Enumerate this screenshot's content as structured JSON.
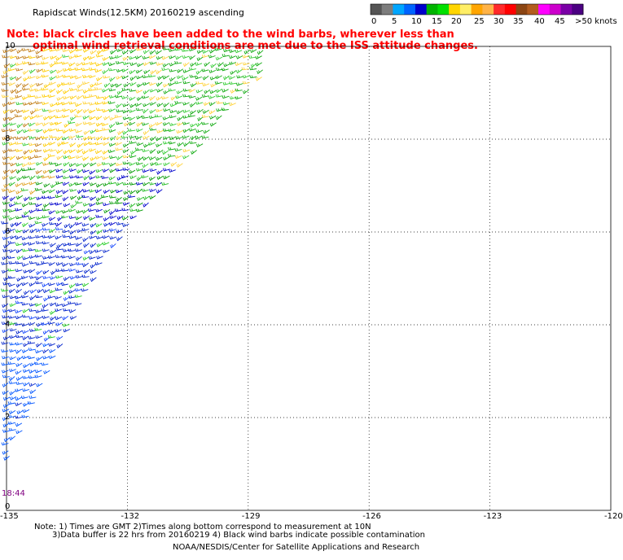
{
  "title": "Rapidscat Winds(12.5KM) 20160219 ascending",
  "note": {
    "line1": "Note: black circles have been added to the wind barbs, wherever less than",
    "line2": "optimal wind retrieval conditions are met due to the ISS attitude changes."
  },
  "legend": {
    "colors": [
      "#555555",
      "#7d7d7d",
      "#00a6ff",
      "#0064ff",
      "#0000cc",
      "#00b400",
      "#00e000",
      "#ffd500",
      "#ffee66",
      "#ffa500",
      "#ffb347",
      "#ff2a2a",
      "#ff0000",
      "#8b4513",
      "#b35c1e",
      "#ff00ff",
      "#cc00cc",
      "#7a00a6",
      "#4b0082"
    ],
    "labels": [
      "0",
      "5",
      "10",
      "15",
      "20",
      "25",
      "30",
      "35",
      "40",
      "45",
      ">50 knots"
    ],
    "label_x": [
      456,
      481,
      505,
      530,
      554,
      582,
      606,
      630,
      656,
      681,
      706
    ]
  },
  "map": {
    "lon_min": -135,
    "lon_max": -120,
    "lat_min": 0,
    "lat_max": 10,
    "x_ticks": [
      "-135",
      "-132",
      "-129",
      "-126",
      "-123",
      "-120"
    ],
    "y_ticks": [
      "10",
      "8",
      "6",
      "4",
      "2",
      "0"
    ],
    "time_label": "18:44",
    "swath_corners": [
      [
        -135,
        10
      ],
      [
        -128,
        10
      ],
      [
        -130,
        8
      ],
      [
        -132.5,
        5.5
      ],
      [
        -135,
        1
      ]
    ]
  },
  "footer": {
    "line1": "Note: 1) Times are GMT 2)Times along bottom correspond to measurement at 10N",
    "line2": "3)Data buffer is 22 hrs from 20160219 4) Black wind barbs indicate possible contamination",
    "credit": "NOAA/NESDIS/Center for Satellite Applications and Research"
  }
}
